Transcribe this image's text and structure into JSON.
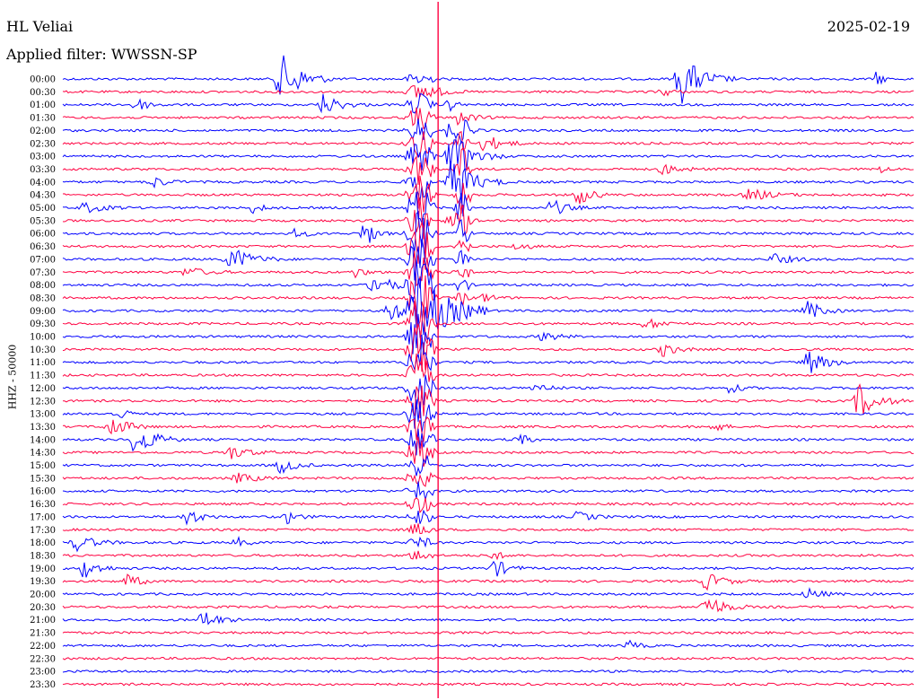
{
  "header": {
    "station": "HL Veliai",
    "filter": "Applied filter: WWSSN-SP",
    "date": "2025-02-19",
    "channel": "HHZ - 50000"
  },
  "chart_data": {
    "type": "line",
    "title": "HL Veliai",
    "subtitle": "Applied filter: WWSSN-SP",
    "ylabel": "HHZ - 50000",
    "colors": [
      "#0000ff",
      "#ff0040"
    ],
    "rows": [
      "00:00",
      "00:30",
      "01:00",
      "01:30",
      "02:00",
      "02:30",
      "03:00",
      "03:30",
      "04:00",
      "04:30",
      "05:00",
      "05:30",
      "06:00",
      "06:30",
      "07:00",
      "07:30",
      "08:00",
      "08:30",
      "09:00",
      "09:30",
      "10:00",
      "10:30",
      "11:00",
      "11:30",
      "12:00",
      "12:30",
      "13:00",
      "13:30",
      "14:00",
      "14:30",
      "15:00",
      "15:30",
      "16:00",
      "16:30",
      "17:00",
      "17:30",
      "18:00",
      "18:30",
      "19:00",
      "19:30",
      "20:00",
      "20:30",
      "21:00",
      "21:30",
      "22:00",
      "22:30",
      "23:00",
      "23:30"
    ],
    "events": [
      {
        "row": 0,
        "pos": 0.25,
        "amp": 28,
        "dur": 0.06
      },
      {
        "row": 0,
        "pos": 0.72,
        "amp": 28,
        "dur": 0.06
      },
      {
        "row": 0,
        "pos": 0.955,
        "amp": 12,
        "dur": 0.015
      },
      {
        "row": 1,
        "pos": 0.43,
        "amp": 6,
        "dur": 0.04
      },
      {
        "row": 1,
        "pos": 0.7,
        "amp": 6,
        "dur": 0.03
      },
      {
        "row": 2,
        "pos": 0.3,
        "amp": 12,
        "dur": 0.05
      },
      {
        "row": 2,
        "pos": 0.08,
        "amp": 8,
        "dur": 0.04
      },
      {
        "row": 2,
        "pos": 0.45,
        "amp": 10,
        "dur": 0.02
      },
      {
        "row": 3,
        "pos": 0.46,
        "amp": 8,
        "dur": 0.04
      },
      {
        "row": 4,
        "pos": 0.45,
        "amp": 14,
        "dur": 0.04
      },
      {
        "row": 5,
        "pos": 0.49,
        "amp": 10,
        "dur": 0.05
      },
      {
        "row": 6,
        "pos": 0.45,
        "amp": 22,
        "dur": 0.06
      },
      {
        "row": 7,
        "pos": 0.7,
        "amp": 6,
        "dur": 0.05
      },
      {
        "row": 7,
        "pos": 0.96,
        "amp": 5,
        "dur": 0.02
      },
      {
        "row": 8,
        "pos": 0.1,
        "amp": 7,
        "dur": 0.04
      },
      {
        "row": 8,
        "pos": 0.45,
        "amp": 26,
        "dur": 0.06
      },
      {
        "row": 9,
        "pos": 0.6,
        "amp": 12,
        "dur": 0.04
      },
      {
        "row": 9,
        "pos": 0.8,
        "amp": 7,
        "dur": 0.06
      },
      {
        "row": 10,
        "pos": 0.02,
        "amp": 6,
        "dur": 0.05
      },
      {
        "row": 10,
        "pos": 0.22,
        "amp": 6,
        "dur": 0.03
      },
      {
        "row": 10,
        "pos": 0.57,
        "amp": 10,
        "dur": 0.04
      },
      {
        "row": 11,
        "pos": 0.45,
        "amp": 6,
        "dur": 0.05
      },
      {
        "row": 12,
        "pos": 0.27,
        "amp": 6,
        "dur": 0.03
      },
      {
        "row": 12,
        "pos": 0.35,
        "amp": 18,
        "dur": 0.03
      },
      {
        "row": 13,
        "pos": 0.53,
        "amp": 6,
        "dur": 0.03
      },
      {
        "row": 14,
        "pos": 0.19,
        "amp": 14,
        "dur": 0.06
      },
      {
        "row": 14,
        "pos": 0.83,
        "amp": 6,
        "dur": 0.05
      },
      {
        "row": 15,
        "pos": 0.14,
        "amp": 6,
        "dur": 0.05
      },
      {
        "row": 15,
        "pos": 0.34,
        "amp": 6,
        "dur": 0.03
      },
      {
        "row": 16,
        "pos": 0.36,
        "amp": 14,
        "dur": 0.05
      },
      {
        "row": 17,
        "pos": 0.49,
        "amp": 6,
        "dur": 0.03
      },
      {
        "row": 18,
        "pos": 0.38,
        "amp": 14,
        "dur": 0.05
      },
      {
        "row": 18,
        "pos": 0.87,
        "amp": 12,
        "dur": 0.04
      },
      {
        "row": 19,
        "pos": 0.68,
        "amp": 6,
        "dur": 0.05
      },
      {
        "row": 20,
        "pos": 0.56,
        "amp": 6,
        "dur": 0.04
      },
      {
        "row": 21,
        "pos": 0.7,
        "amp": 8,
        "dur": 0.04
      },
      {
        "row": 22,
        "pos": 0.87,
        "amp": 14,
        "dur": 0.05
      },
      {
        "row": 24,
        "pos": 0.55,
        "amp": 6,
        "dur": 0.04
      },
      {
        "row": 24,
        "pos": 0.78,
        "amp": 6,
        "dur": 0.03
      },
      {
        "row": 25,
        "pos": 0.93,
        "amp": 20,
        "dur": 0.05
      },
      {
        "row": 26,
        "pos": 0.06,
        "amp": 8,
        "dur": 0.03
      },
      {
        "row": 27,
        "pos": 0.05,
        "amp": 12,
        "dur": 0.05
      },
      {
        "row": 27,
        "pos": 0.76,
        "amp": 6,
        "dur": 0.03
      },
      {
        "row": 28,
        "pos": 0.08,
        "amp": 20,
        "dur": 0.05
      },
      {
        "row": 28,
        "pos": 0.53,
        "amp": 8,
        "dur": 0.03
      },
      {
        "row": 29,
        "pos": 0.19,
        "amp": 8,
        "dur": 0.05
      },
      {
        "row": 30,
        "pos": 0.25,
        "amp": 10,
        "dur": 0.04
      },
      {
        "row": 31,
        "pos": 0.2,
        "amp": 6,
        "dur": 0.05
      },
      {
        "row": 34,
        "pos": 0.14,
        "amp": 10,
        "dur": 0.04
      },
      {
        "row": 34,
        "pos": 0.26,
        "amp": 8,
        "dur": 0.03
      },
      {
        "row": 34,
        "pos": 0.6,
        "amp": 6,
        "dur": 0.04
      },
      {
        "row": 36,
        "pos": 0.01,
        "amp": 10,
        "dur": 0.05
      },
      {
        "row": 36,
        "pos": 0.2,
        "amp": 6,
        "dur": 0.03
      },
      {
        "row": 37,
        "pos": 0.5,
        "amp": 6,
        "dur": 0.03
      },
      {
        "row": 38,
        "pos": 0.02,
        "amp": 12,
        "dur": 0.04
      },
      {
        "row": 38,
        "pos": 0.5,
        "amp": 12,
        "dur": 0.04
      },
      {
        "row": 39,
        "pos": 0.07,
        "amp": 8,
        "dur": 0.04
      },
      {
        "row": 39,
        "pos": 0.75,
        "amp": 10,
        "dur": 0.05
      },
      {
        "row": 40,
        "pos": 0.87,
        "amp": 7,
        "dur": 0.04
      },
      {
        "row": 41,
        "pos": 0.75,
        "amp": 14,
        "dur": 0.05
      },
      {
        "row": 42,
        "pos": 0.16,
        "amp": 12,
        "dur": 0.04
      },
      {
        "row": 44,
        "pos": 0.66,
        "amp": 6,
        "dur": 0.03
      }
    ],
    "major_event": {
      "pos": 0.42,
      "start_row": 0,
      "end_row": 37,
      "peak_row": 18,
      "amp": 40
    },
    "secondary_event": {
      "pos": 0.47,
      "start_row": 4,
      "end_row": 18,
      "peak_row": 7,
      "amp": 30
    }
  }
}
